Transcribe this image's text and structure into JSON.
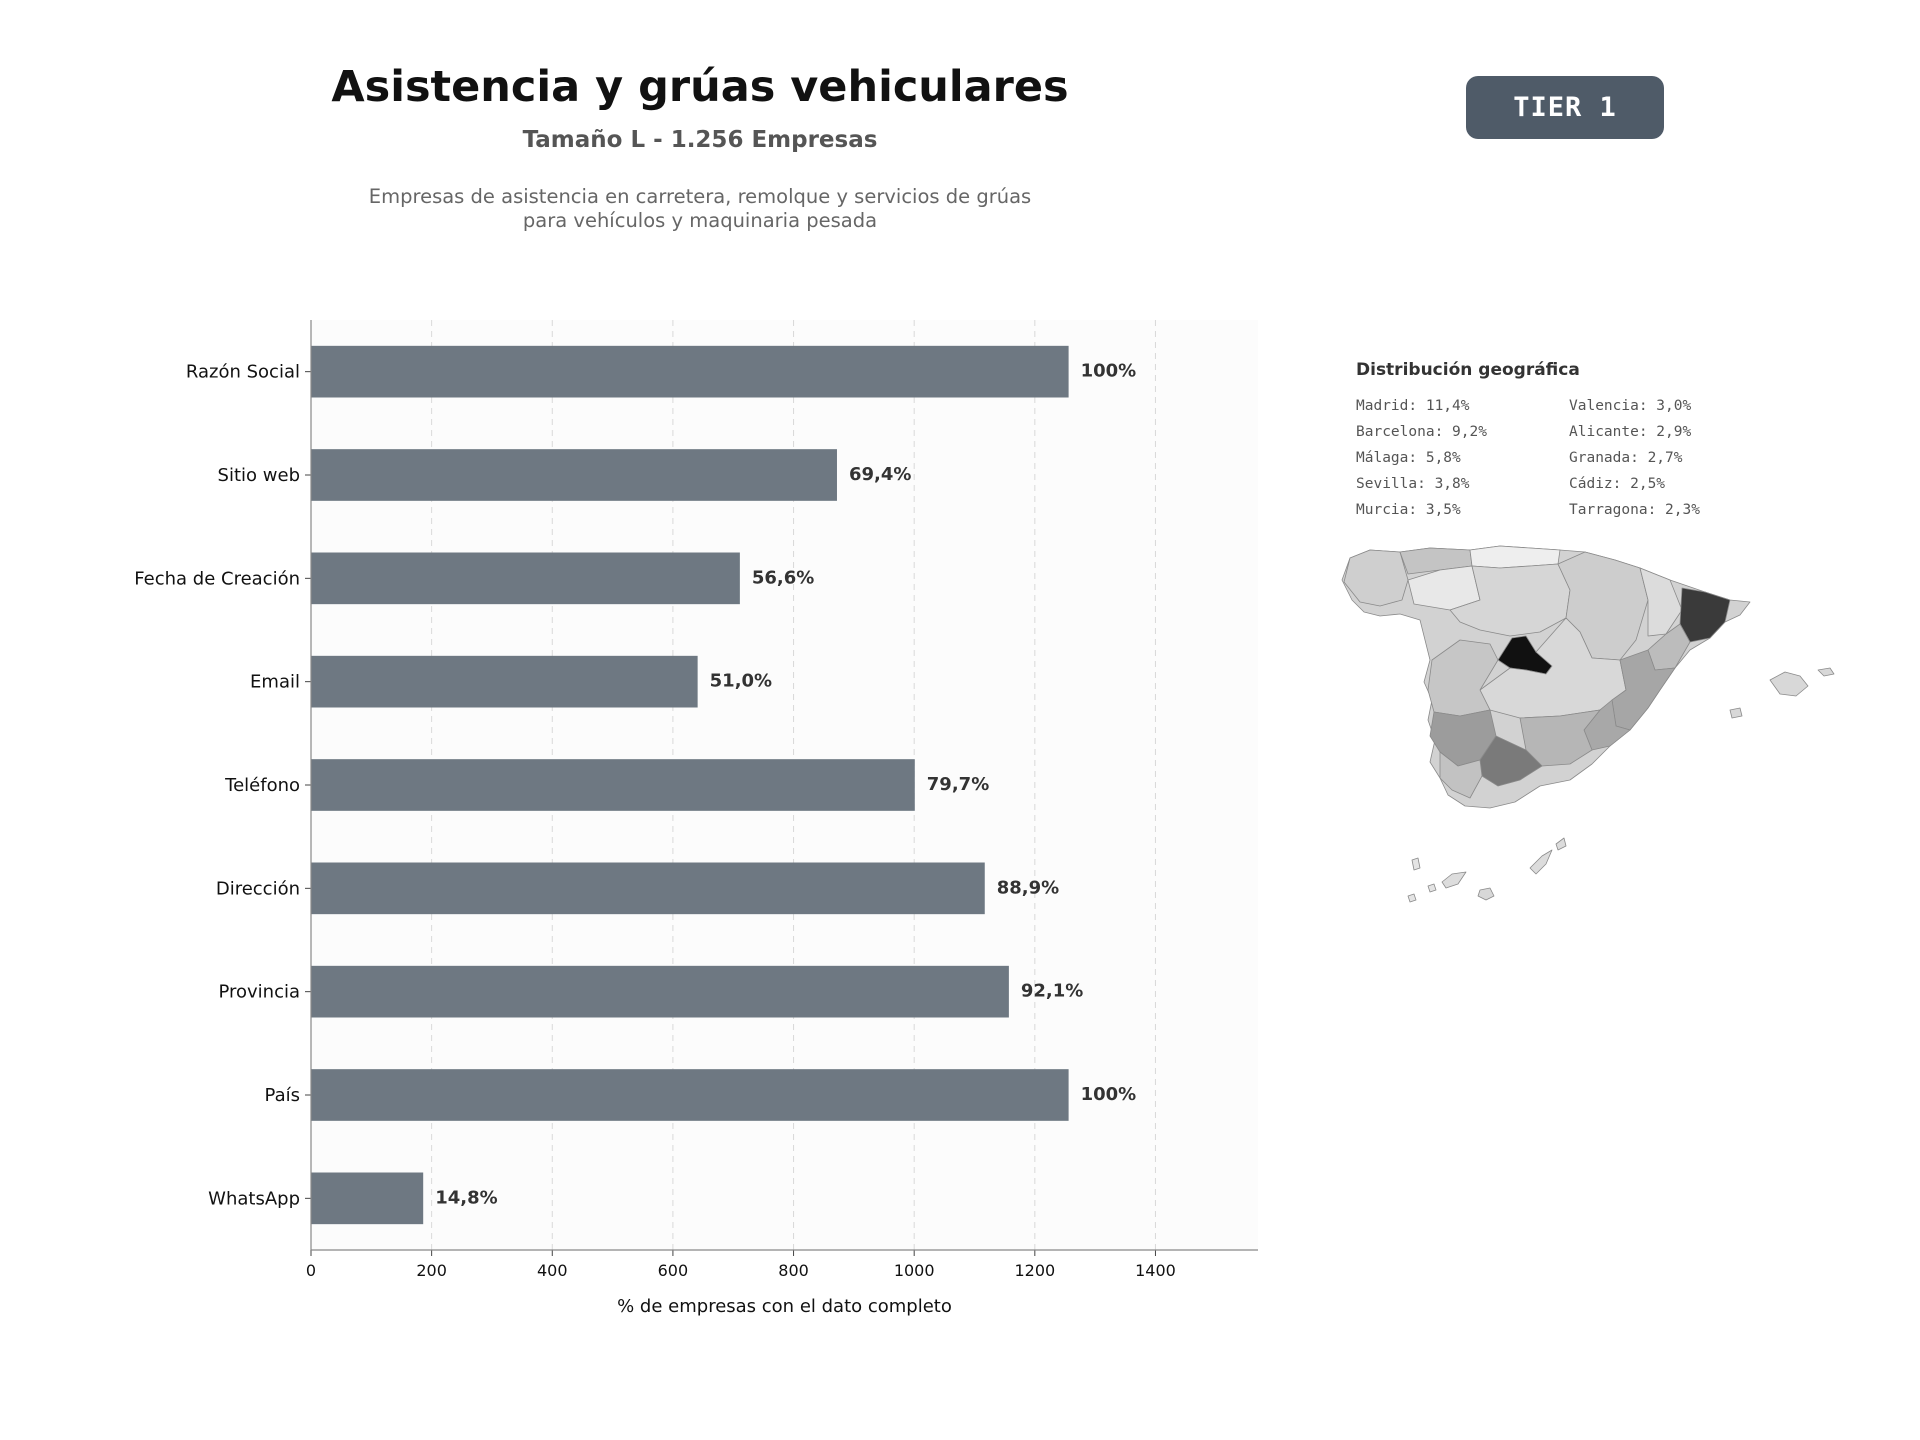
{
  "header": {
    "title": "Asistencia y grúas vehiculares",
    "subtitle": "Tamaño L - 1.256 Empresas",
    "description_line1": "Empresas de asistencia en carretera, remolque y servicios de grúas",
    "description_line2": "para vehículos y maquinaria pesada",
    "tier_label": "TIER 1"
  },
  "colors": {
    "bar": "#6e7882",
    "badge": "#4f5b68",
    "plot_bg": "#fcfcfc",
    "map_scale": [
      "#111111",
      "#3a3a3a",
      "#7a7a7a",
      "#a0a0a0",
      "#b8b8b8",
      "#cccccc",
      "#dcdcdc",
      "#eeeeee"
    ]
  },
  "chart_data": {
    "type": "bar",
    "orientation": "horizontal",
    "categories": [
      "Razón Social",
      "Sitio web",
      "Fecha de Creación",
      "Email",
      "Teléfono",
      "Dirección",
      "Provincia",
      "País",
      "WhatsApp"
    ],
    "values": [
      1256,
      872,
      711,
      641,
      1001,
      1117,
      1157,
      1256,
      186
    ],
    "data_labels": [
      "100%",
      "69,4%",
      "56,6%",
      "51,0%",
      "79,7%",
      "88,9%",
      "92,1%",
      "100%",
      "14,8%"
    ],
    "xlabel": "% de empresas con el dato completo",
    "xticks": [
      0,
      200,
      400,
      600,
      800,
      1000,
      1200,
      1400
    ],
    "xlim": [
      0,
      1570
    ],
    "grid": "vertical dashed"
  },
  "geo": {
    "title": "Distribución geográfica",
    "items": [
      "Madrid: 11,4%",
      "Valencia: 3,0%",
      "Barcelona: 9,2%",
      "Alicante: 2,9%",
      "Málaga: 5,8%",
      "Granada: 2,7%",
      "Sevilla: 3,8%",
      "Cádiz: 2,5%",
      "Murcia: 3,5%",
      "Tarragona: 2,3%"
    ]
  }
}
